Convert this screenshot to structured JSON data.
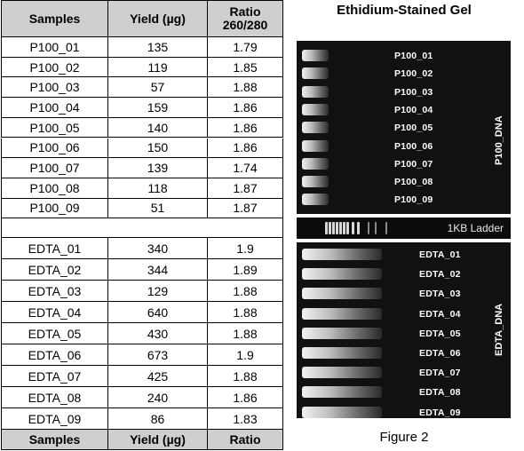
{
  "table": {
    "header": {
      "samples": "Samples",
      "yield": "Yield (µg)",
      "ratio_line1": "Ratio",
      "ratio_line2": "260/280"
    },
    "p100_rows": [
      {
        "sample": "P100_01",
        "yield": "135",
        "ratio": "1.79"
      },
      {
        "sample": "P100_02",
        "yield": "119",
        "ratio": "1.85"
      },
      {
        "sample": "P100_03",
        "yield": "57",
        "ratio": "1.88"
      },
      {
        "sample": "P100_04",
        "yield": "159",
        "ratio": "1.86"
      },
      {
        "sample": "P100_05",
        "yield": "140",
        "ratio": "1.86"
      },
      {
        "sample": "P100_06",
        "yield": "150",
        "ratio": "1.86"
      },
      {
        "sample": "P100_07",
        "yield": "139",
        "ratio": "1.74"
      },
      {
        "sample": "P100_08",
        "yield": "118",
        "ratio": "1.87"
      },
      {
        "sample": "P100_09",
        "yield": "51",
        "ratio": "1.87"
      }
    ],
    "edta_rows": [
      {
        "sample": "EDTA_01",
        "yield": "340",
        "ratio": "1.9"
      },
      {
        "sample": "EDTA_02",
        "yield": "344",
        "ratio": "1.89"
      },
      {
        "sample": "EDTA_03",
        "yield": "129",
        "ratio": "1.88"
      },
      {
        "sample": "EDTA_04",
        "yield": "640",
        "ratio": "1.88"
      },
      {
        "sample": "EDTA_05",
        "yield": "430",
        "ratio": "1.88"
      },
      {
        "sample": "EDTA_06",
        "yield": "673",
        "ratio": "1.9"
      },
      {
        "sample": "EDTA_07",
        "yield": "425",
        "ratio": "1.88"
      },
      {
        "sample": "EDTA_08",
        "yield": "240",
        "ratio": "1.86"
      },
      {
        "sample": "EDTA_09",
        "yield": "86",
        "ratio": "1.83"
      }
    ],
    "footer": {
      "samples": "Samples",
      "yield": "Yield (µg)",
      "ratio": "Ratio"
    }
  },
  "figure": {
    "title": "Ethidium-Stained Gel",
    "caption": "Figure 2",
    "p100_gel": {
      "group_label": "P100_DNA",
      "lane_labels": [
        "P100_01",
        "P100_02",
        "P100_03",
        "P100_04",
        "P100_05",
        "P100_06",
        "P100_07",
        "P100_08",
        "P100_09"
      ]
    },
    "ladder_label": "1KB Ladder",
    "edta_gel": {
      "group_label": "EDTA_DNA",
      "lane_labels": [
        "EDTA_01",
        "EDTA_02",
        "EDTA_03",
        "EDTA_04",
        "EDTA_05",
        "EDTA_06",
        "EDTA_07",
        "EDTA_08",
        "EDTA_09"
      ]
    }
  }
}
